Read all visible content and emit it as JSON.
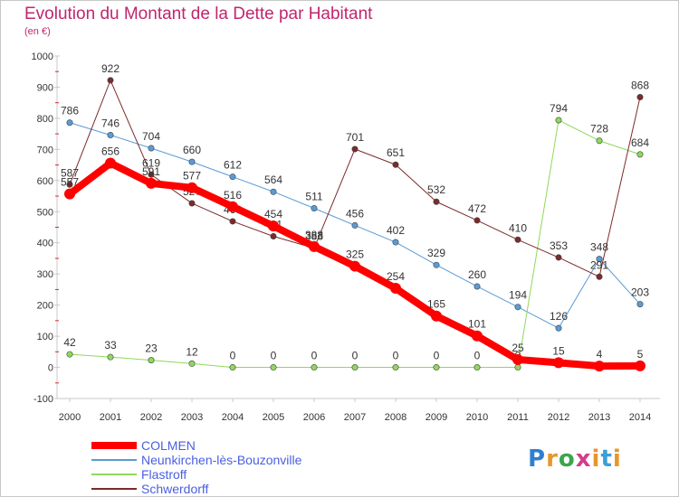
{
  "title": "Evolution du Montant de la Dette par Habitant",
  "unit": "(en €)",
  "logo": "Proxiti",
  "chart_data": {
    "type": "line",
    "x": [
      "2000",
      "2001",
      "2002",
      "2003",
      "2004",
      "2005",
      "2006",
      "2007",
      "2008",
      "2009",
      "2010",
      "2011",
      "2012",
      "2013",
      "2014"
    ],
    "ylim": [
      -100,
      1000
    ],
    "yticks": [
      -100,
      0,
      100,
      200,
      300,
      400,
      500,
      600,
      700,
      800,
      900,
      1000
    ],
    "grid": false,
    "legend_position": "bottom-left",
    "series": [
      {
        "name": "COLMEN",
        "color": "#ff0000",
        "line_width": 8,
        "values": [
          557,
          656,
          591,
          577,
          516,
          454,
          388,
          325,
          254,
          165,
          101,
          25,
          15,
          4,
          5
        ]
      },
      {
        "name": "Neunkirchen-lès-Bouzonville",
        "color": "#5b9bd5",
        "line_width": 1,
        "values": [
          786,
          746,
          704,
          660,
          612,
          564,
          511,
          456,
          402,
          329,
          260,
          194,
          126,
          348,
          203
        ]
      },
      {
        "name": "Flastroff",
        "color": "#8ed95a",
        "line_width": 1,
        "values": [
          42,
          33,
          23,
          12,
          0,
          0,
          0,
          0,
          0,
          0,
          0,
          0,
          794,
          728,
          684
        ]
      },
      {
        "name": "Schwerdorff",
        "color": "#7b2b2b",
        "line_width": 1,
        "values": [
          587,
          922,
          619,
          527,
          469,
          421,
          383,
          701,
          651,
          532,
          472,
          410,
          353,
          291,
          868
        ]
      }
    ]
  }
}
